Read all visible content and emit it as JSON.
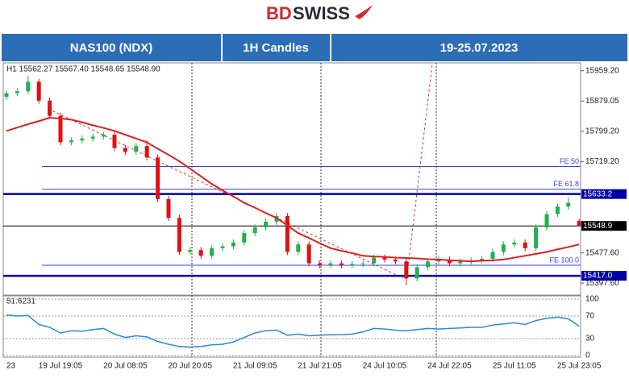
{
  "header": {
    "logo_a": "BD",
    "logo_b": "SWISS",
    "cells": [
      "NAS100 (NDX)",
      "1H Candles",
      "19-25.07.2023"
    ]
  },
  "chart_data": [
    {
      "type": "candlestick",
      "info": "H1  15562.27 15567.40 15548.65 15548.90",
      "categories": [
        "23",
        null,
        null,
        null,
        null,
        "19 Jul 19:05",
        null,
        null,
        null,
        null,
        null,
        "20 Jul 08:05",
        null,
        null,
        null,
        null,
        null,
        "20 Jul 20:05",
        null,
        null,
        null,
        null,
        null,
        "21 Jul 09:05",
        null,
        null,
        null,
        null,
        null,
        "21 Jul 21:05",
        null,
        null,
        null,
        null,
        null,
        "24 Jul 10:05",
        null,
        null,
        null,
        null,
        null,
        "24 Jul 22:05",
        null,
        null,
        null,
        null,
        null,
        "25 Jul 11:05",
        null,
        null,
        null,
        null,
        null,
        "25 Jul 23:05"
      ],
      "open": [
        15890,
        15900,
        15905,
        15930,
        15880,
        15840,
        15770,
        15775,
        15780,
        15785,
        15790,
        15755,
        15745,
        15760,
        15730,
        15620,
        15570,
        15480,
        15485,
        15470,
        15490,
        15495,
        15505,
        15530,
        15545,
        15560,
        15575,
        15480,
        15500,
        15450,
        15445,
        15450,
        15445,
        15448,
        15450,
        15465,
        15460,
        15455,
        15410,
        15440,
        15455,
        15460,
        15450,
        15455,
        15458,
        15462,
        15480,
        15500,
        15505,
        15490,
        15545,
        15580,
        15600,
        15562.27
      ],
      "high": [
        15908,
        15913,
        15945,
        15938,
        15888,
        15848,
        15783,
        15788,
        15793,
        15798,
        15798,
        15763,
        15768,
        15775,
        15738,
        15628,
        15578,
        15493,
        15493,
        15498,
        15503,
        15513,
        15538,
        15553,
        15568,
        15583,
        15583,
        15508,
        15508,
        15458,
        15458,
        15458,
        15456,
        15458,
        15473,
        15473,
        15468,
        15463,
        15448,
        15463,
        15468,
        15468,
        15463,
        15466,
        15470,
        15488,
        15508,
        15513,
        15513,
        15553,
        15588,
        15608,
        15625,
        15567.4
      ],
      "low": [
        15882,
        15892,
        15897,
        15872,
        15832,
        15762,
        15762,
        15767,
        15772,
        15777,
        15747,
        15737,
        15737,
        15722,
        15612,
        15562,
        15472,
        15472,
        15462,
        15462,
        15482,
        15487,
        15497,
        15522,
        15537,
        15552,
        15472,
        15472,
        15442,
        15437,
        15437,
        15437,
        15437,
        15440,
        15442,
        15452,
        15447,
        15392,
        15402,
        15432,
        15447,
        15442,
        15442,
        15447,
        15450,
        15454,
        15472,
        15492,
        15482,
        15482,
        15537,
        15572,
        15592,
        15548.65
      ],
      "close": [
        15900,
        15905,
        15930,
        15880,
        15840,
        15770,
        15775,
        15780,
        15785,
        15790,
        15755,
        15745,
        15760,
        15730,
        15620,
        15570,
        15480,
        15485,
        15470,
        15490,
        15495,
        15505,
        15530,
        15545,
        15560,
        15575,
        15480,
        15500,
        15450,
        15445,
        15450,
        15445,
        15448,
        15450,
        15465,
        15460,
        15455,
        15410,
        15440,
        15455,
        15460,
        15450,
        15455,
        15458,
        15462,
        15480,
        15500,
        15505,
        15490,
        15545,
        15580,
        15600,
        15610,
        15548.9
      ],
      "up_color": "#22b14c",
      "down_color": "#e01010",
      "series": [
        {
          "color": "#e02020",
          "values": [
            15800,
            15809,
            15818,
            15826,
            15835,
            15833,
            15830,
            15823,
            15815,
            15808,
            15800,
            15790,
            15780,
            15770,
            15753,
            15737,
            15720,
            15700,
            15680,
            15660,
            15643,
            15627,
            15610,
            15597,
            15583,
            15570,
            15550,
            15530,
            15517,
            15503,
            15490,
            15483,
            15477,
            15470,
            15468,
            15467,
            15465,
            15464,
            15463,
            15461,
            15460,
            15458,
            15457,
            15455,
            15457,
            15458,
            15460,
            15465,
            15470,
            15475,
            15480,
            15487,
            15493,
            15500
          ]
        }
      ],
      "ylim": [
        15366,
        15980
      ],
      "yticks": [
        {
          "value": 15959.2,
          "label": "15959.20"
        },
        {
          "value": 15879.05,
          "label": "15879.05"
        },
        {
          "value": 15799.2,
          "label": "15799.20"
        },
        {
          "value": 15719.2,
          "label": "15719.20"
        },
        {
          "value": 15477.6,
          "label": "15477.60"
        },
        {
          "value": 15397.6,
          "label": "15397.60"
        }
      ],
      "levels": [
        {
          "value": 15706,
          "label": "FE 50"
        },
        {
          "value": 15646,
          "label": "FE 61.8"
        },
        {
          "value": 15445,
          "label": "FE 100.0"
        }
      ],
      "level_color": "#3344dd",
      "price_lines": [
        {
          "value": 15633.2,
          "label": "15633.2",
          "color": "#0000aa"
        },
        {
          "value": 15548.9,
          "label": "15548.9",
          "color": "#000000"
        },
        {
          "value": 15417.0,
          "label": "15417.0",
          "color": "#0000aa"
        }
      ]
    },
    {
      "type": "line",
      "info": "51.6231",
      "series": [
        {
          "color": "#2a8ad8",
          "values": [
            72,
            70,
            71,
            55,
            50,
            40,
            44,
            43,
            46,
            48,
            38,
            32,
            35,
            33,
            25,
            20,
            16,
            15,
            16,
            19,
            20,
            24,
            32,
            40,
            44,
            45,
            36,
            38,
            35,
            36,
            37,
            37,
            38,
            42,
            48,
            47,
            45,
            44,
            46,
            48,
            47,
            48,
            49,
            50,
            50,
            54,
            56,
            58,
            55,
            62,
            66,
            68,
            65,
            52
          ]
        }
      ],
      "ylim": [
        0,
        100
      ],
      "yticks": [
        100,
        70,
        30,
        0
      ]
    }
  ]
}
